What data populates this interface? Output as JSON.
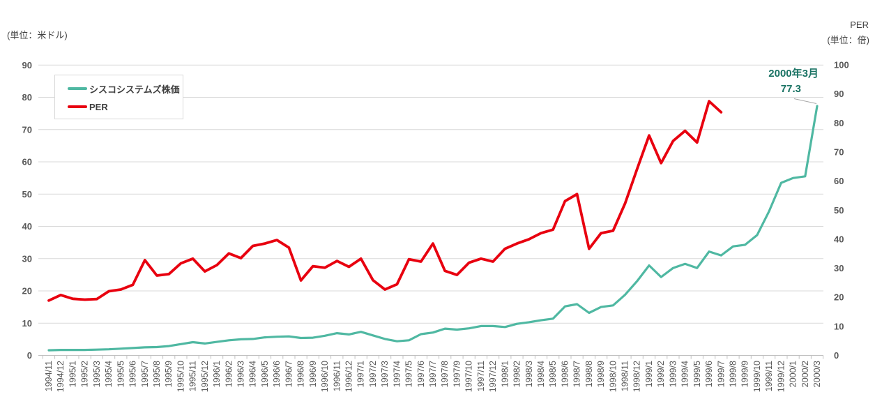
{
  "axes": {
    "left_unit": "(単位：米ドル)",
    "right_title": "PER",
    "right_unit": "(単位：倍)",
    "left_ticks": [
      90,
      80,
      70,
      60,
      50,
      40,
      30,
      20,
      10,
      0
    ],
    "right_ticks": [
      100,
      90,
      80,
      70,
      60,
      50,
      40,
      30,
      20,
      10,
      0
    ]
  },
  "legend": {
    "items": [
      {
        "label": "シスコシステムズ株価",
        "color_key": "stock_line"
      },
      {
        "label": "PER",
        "color_key": "per_line"
      }
    ]
  },
  "annotation": {
    "date": "2000年3月",
    "value": "77.3"
  },
  "colors": {
    "stock_line": "#4fb8a2",
    "per_line": "#e8000f",
    "annotation_text": "#1a7364",
    "axis_text": "#595959",
    "unit_text": "#404040",
    "legend_text": "#3f3f3f",
    "gridline": "#d9d9d9",
    "baseline": "#c0c0c0",
    "tick": "#c0c0c0",
    "leader": "#a6a6a6",
    "legend_border": "#d9d9d9",
    "background": "#ffffff"
  },
  "chart_data": {
    "type": "line",
    "title": "",
    "x": [
      "1994/11",
      "1994/12",
      "1995/1",
      "1995/2",
      "1995/3",
      "1995/4",
      "1995/5",
      "1995/6",
      "1995/7",
      "1995/8",
      "1995/9",
      "1995/10",
      "1995/11",
      "1995/12",
      "1996/1",
      "1996/2",
      "1996/3",
      "1996/4",
      "1996/5",
      "1996/6",
      "1996/7",
      "1996/8",
      "1996/9",
      "1996/10",
      "1996/11",
      "1996/12",
      "1997/1",
      "1997/2",
      "1997/3",
      "1997/4",
      "1997/5",
      "1997/6",
      "1997/7",
      "1997/8",
      "1997/9",
      "1997/10",
      "1997/11",
      "1997/12",
      "1998/1",
      "1998/2",
      "1998/3",
      "1998/4",
      "1998/5",
      "1998/6",
      "1998/7",
      "1998/8",
      "1998/9",
      "1998/10",
      "1998/11",
      "1998/12",
      "1999/1",
      "1999/2",
      "1999/3",
      "1999/4",
      "1999/5",
      "1999/6",
      "1999/7",
      "1999/8",
      "1999/9",
      "1999/10",
      "1999/11",
      "1999/12",
      "2000/1",
      "2000/2",
      "2000/3"
    ],
    "series": [
      {
        "name": "シスコシステムズ株価",
        "axis": "left",
        "unit": "米ドル",
        "color_key": "stock_line",
        "values": [
          1.6,
          1.7,
          1.7,
          1.7,
          1.8,
          1.9,
          2.1,
          2.3,
          2.5,
          2.6,
          2.9,
          3.5,
          4.1,
          3.7,
          4.2,
          4.7,
          5.0,
          5.1,
          5.6,
          5.8,
          5.9,
          5.4,
          5.5,
          6.1,
          6.9,
          6.5,
          7.3,
          6.2,
          5.1,
          4.4,
          4.7,
          6.6,
          7.1,
          8.3,
          8.0,
          8.4,
          9.1,
          9.1,
          8.8,
          9.8,
          10.3,
          10.9,
          11.4,
          15.2,
          15.9,
          13.2,
          15.0,
          15.5,
          18.8,
          23.0,
          27.9,
          24.3,
          27.1,
          28.4,
          27.1,
          32.2,
          31.0,
          33.8,
          34.3,
          37.3,
          44.7,
          53.5,
          55.0,
          55.5,
          77.3
        ]
      },
      {
        "name": "PER",
        "axis": "right",
        "unit": "倍",
        "color_key": "per_line",
        "values": [
          18.9,
          20.8,
          19.5,
          19.2,
          19.4,
          22.1,
          22.7,
          24.3,
          32.8,
          27.5,
          28.0,
          31.7,
          33.3,
          28.9,
          31.1,
          35.1,
          33.5,
          37.7,
          38.5,
          39.7,
          37.1,
          25.8,
          30.7,
          30.2,
          32.5,
          30.5,
          33.3,
          25.9,
          22.7,
          24.5,
          33.1,
          32.3,
          38.5,
          29.1,
          27.7,
          31.9,
          33.3,
          32.3,
          36.7,
          38.5,
          40.0,
          42.1,
          43.3,
          53.1,
          55.5,
          36.7,
          42.1,
          42.9,
          52.3,
          64.1,
          75.7,
          66.2,
          73.8,
          77.3,
          73.3,
          87.5,
          83.7,
          null,
          null,
          null,
          null,
          null,
          null,
          null,
          null
        ]
      }
    ],
    "left_axis": {
      "label": "(単位：米ドル)",
      "range": [
        0,
        90
      ],
      "tick_step": 10
    },
    "right_axis": {
      "label": "PER (単位：倍)",
      "range": [
        0,
        100
      ],
      "tick_step": 10
    },
    "grid": "horizontal",
    "legend_position": "top-left",
    "annotation": {
      "text": "2000年3月 77.3",
      "target_x": "2000/3",
      "target_series": "シスコシステムズ株価",
      "target_value": 77.3
    }
  }
}
